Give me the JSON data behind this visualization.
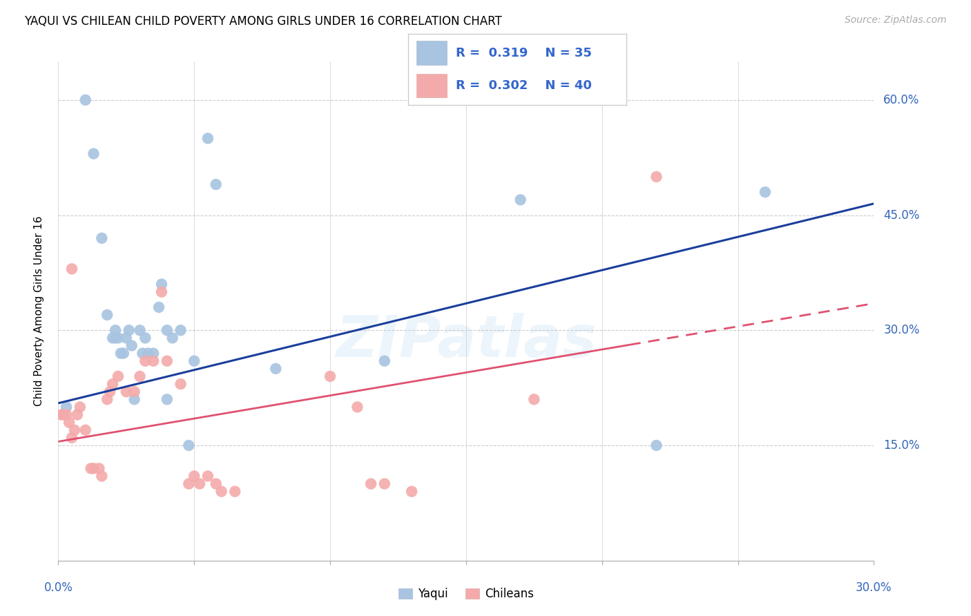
{
  "title": "YAQUI VS CHILEAN CHILD POVERTY AMONG GIRLS UNDER 16 CORRELATION CHART",
  "source": "Source: ZipAtlas.com",
  "ylabel": "Child Poverty Among Girls Under 16",
  "xlim": [
    0.0,
    0.3
  ],
  "ylim": [
    0.0,
    0.65
  ],
  "yticks": [
    0.15,
    0.3,
    0.45,
    0.6
  ],
  "ytick_labels": [
    "15.0%",
    "30.0%",
    "45.0%",
    "60.0%"
  ],
  "legend_yaqui_R": "0.319",
  "legend_yaqui_N": "35",
  "legend_chileans_R": "0.302",
  "legend_chileans_N": "40",
  "yaqui_color": "#A8C4E0",
  "chileans_color": "#F4AAAA",
  "regression_blue": "#1A3E9B",
  "regression_pink": "#E05070",
  "legend_text_color": "#3366CC",
  "axis_label_color": "#3366BB",
  "yaqui_x": [
    0.003,
    0.01,
    0.013,
    0.016,
    0.018,
    0.02,
    0.021,
    0.021,
    0.022,
    0.023,
    0.024,
    0.025,
    0.026,
    0.027,
    0.028,
    0.03,
    0.031,
    0.032,
    0.033,
    0.035,
    0.037,
    0.038,
    0.04,
    0.04,
    0.042,
    0.045,
    0.048,
    0.05,
    0.055,
    0.058,
    0.08,
    0.12,
    0.17,
    0.22,
    0.26
  ],
  "yaqui_y": [
    0.2,
    0.6,
    0.53,
    0.42,
    0.32,
    0.29,
    0.3,
    0.29,
    0.29,
    0.27,
    0.27,
    0.29,
    0.3,
    0.28,
    0.21,
    0.3,
    0.27,
    0.29,
    0.27,
    0.27,
    0.33,
    0.36,
    0.3,
    0.21,
    0.29,
    0.3,
    0.15,
    0.26,
    0.55,
    0.49,
    0.25,
    0.26,
    0.47,
    0.15,
    0.48
  ],
  "chileans_x": [
    0.001,
    0.002,
    0.003,
    0.004,
    0.005,
    0.005,
    0.006,
    0.007,
    0.008,
    0.01,
    0.012,
    0.013,
    0.015,
    0.016,
    0.018,
    0.019,
    0.02,
    0.022,
    0.025,
    0.028,
    0.03,
    0.032,
    0.035,
    0.038,
    0.04,
    0.045,
    0.048,
    0.05,
    0.052,
    0.055,
    0.058,
    0.06,
    0.065,
    0.1,
    0.11,
    0.115,
    0.12,
    0.13,
    0.175,
    0.22
  ],
  "chileans_y": [
    0.19,
    0.19,
    0.19,
    0.18,
    0.16,
    0.38,
    0.17,
    0.19,
    0.2,
    0.17,
    0.12,
    0.12,
    0.12,
    0.11,
    0.21,
    0.22,
    0.23,
    0.24,
    0.22,
    0.22,
    0.24,
    0.26,
    0.26,
    0.35,
    0.26,
    0.23,
    0.1,
    0.11,
    0.1,
    0.11,
    0.1,
    0.09,
    0.09,
    0.24,
    0.2,
    0.1,
    0.1,
    0.09,
    0.21,
    0.5
  ]
}
